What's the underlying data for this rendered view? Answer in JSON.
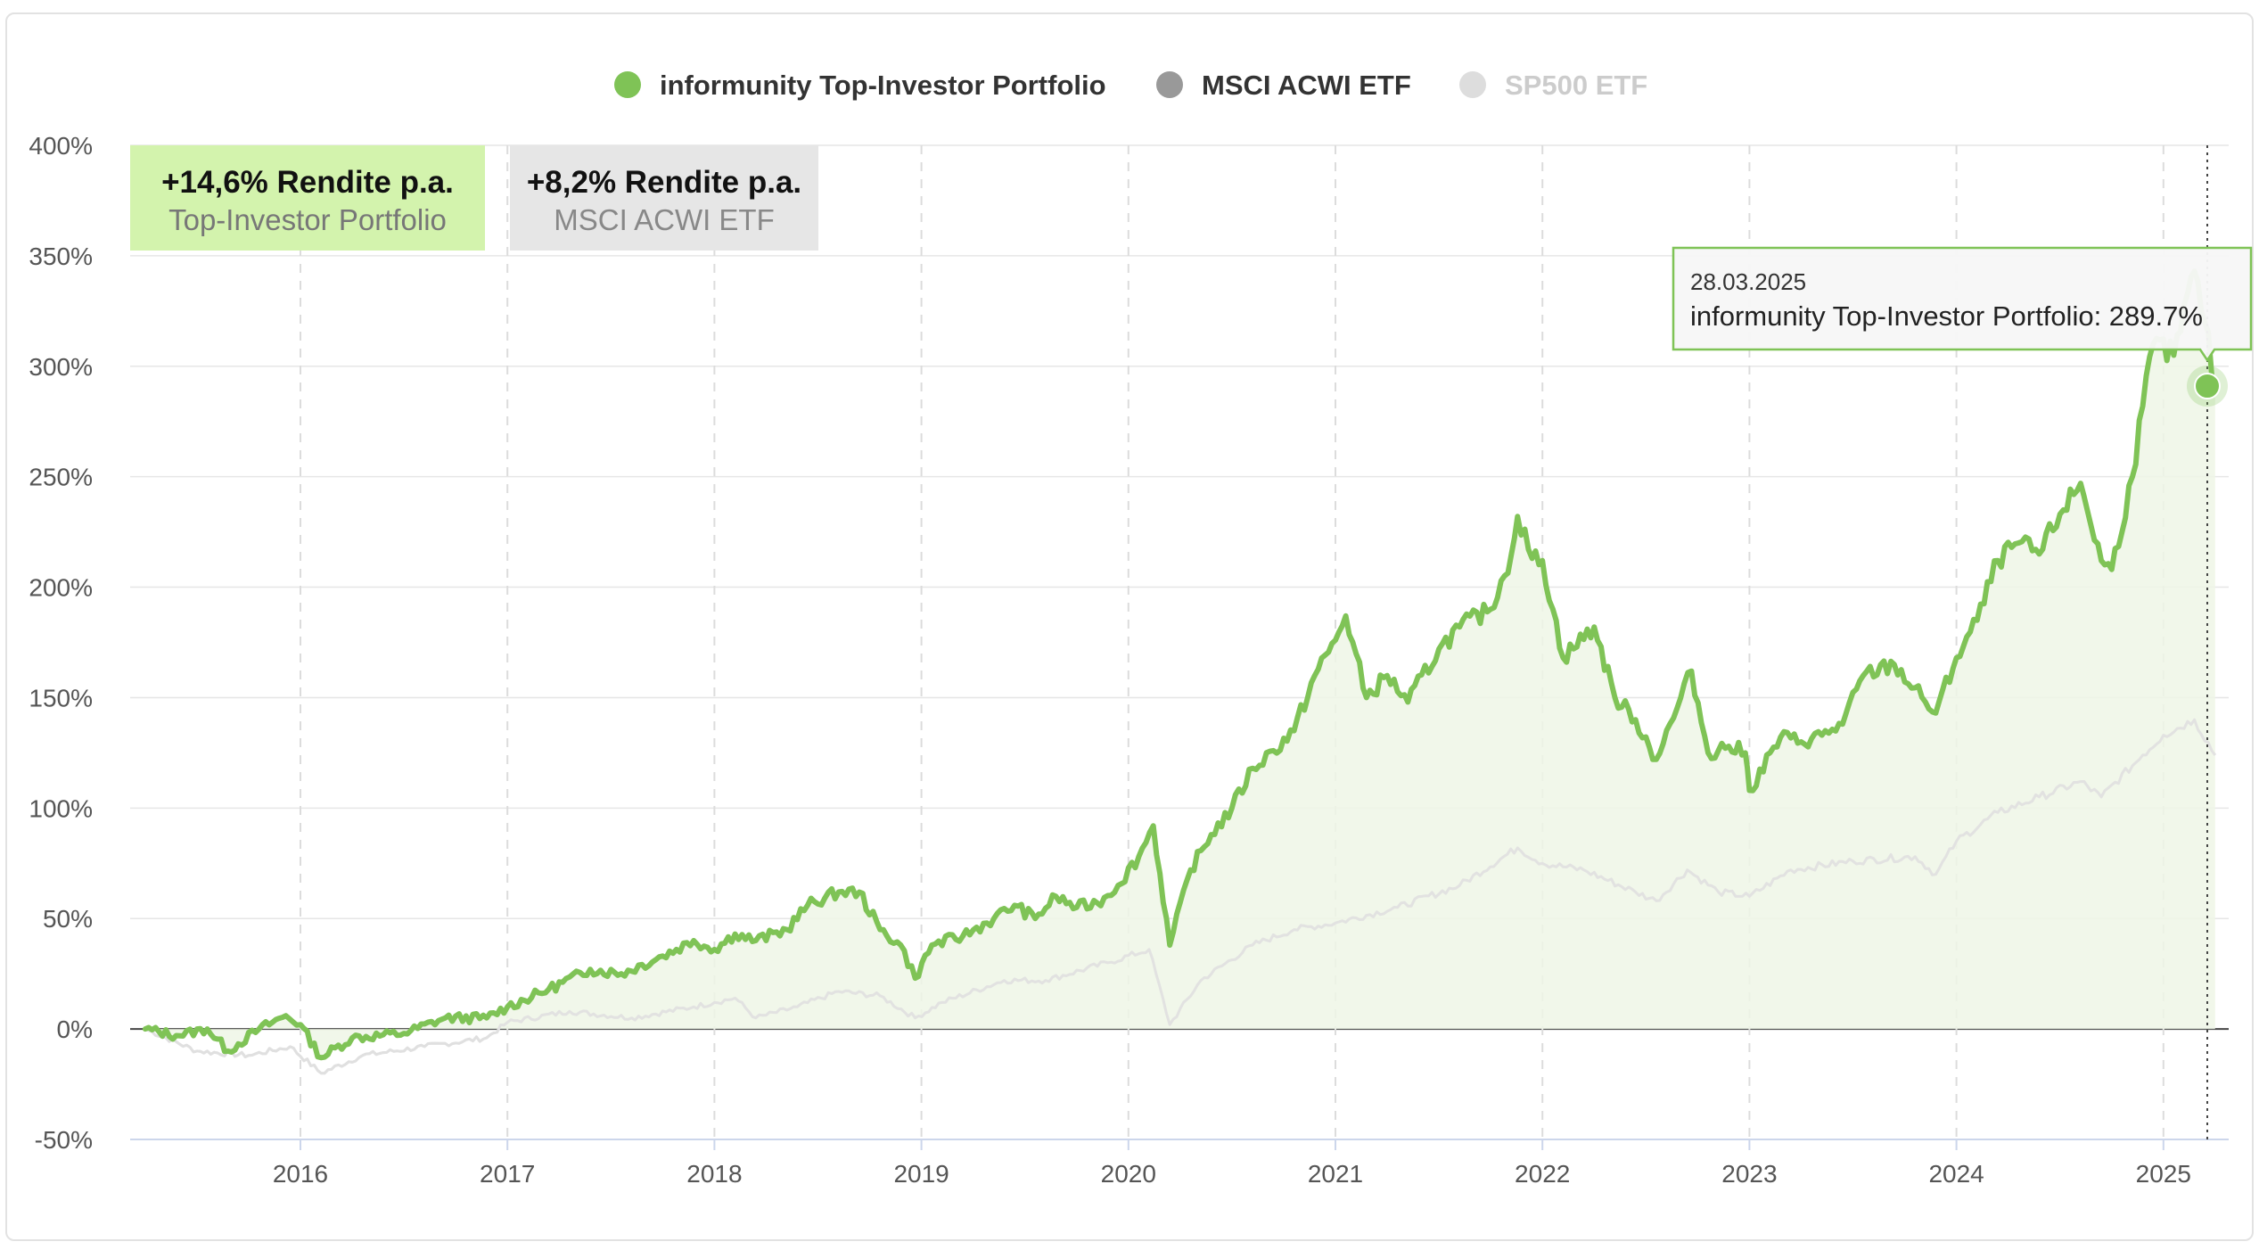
{
  "chart_data": {
    "type": "area",
    "y_tick_labels": [
      "400%",
      "350%",
      "300%",
      "250%",
      "200%",
      "150%",
      "100%",
      "50%",
      "0%",
      "-50%"
    ],
    "y_ticks": [
      400,
      350,
      300,
      250,
      200,
      150,
      100,
      50,
      0,
      -50
    ],
    "ylim": [
      -50,
      400
    ],
    "x_tick_labels": [
      "2016",
      "2017",
      "2018",
      "2019",
      "2020",
      "2021",
      "2022",
      "2023",
      "2024",
      "2025"
    ],
    "x_ticks": [
      2016,
      2017,
      2018,
      2019,
      2020,
      2021,
      2022,
      2023,
      2024,
      2025
    ],
    "xlim": [
      2015.2,
      2025.4
    ],
    "grid": true,
    "legend_position": "top-center",
    "series": [
      {
        "name": "informunity Top-Investor Portfolio",
        "color": "#7fc356",
        "fill": "#eef6e6",
        "points": [
          [
            2015.25,
            0
          ],
          [
            2015.4,
            -3
          ],
          [
            2015.55,
            0
          ],
          [
            2015.65,
            -10
          ],
          [
            2015.8,
            0
          ],
          [
            2015.93,
            6
          ],
          [
            2016.0,
            2
          ],
          [
            2016.1,
            -13
          ],
          [
            2016.25,
            -4
          ],
          [
            2016.5,
            -2
          ],
          [
            2016.7,
            5
          ],
          [
            2016.9,
            5
          ],
          [
            2017.0,
            10
          ],
          [
            2017.2,
            18
          ],
          [
            2017.4,
            27
          ],
          [
            2017.55,
            25
          ],
          [
            2017.75,
            33
          ],
          [
            2017.9,
            40
          ],
          [
            2018.0,
            36
          ],
          [
            2018.1,
            43
          ],
          [
            2018.2,
            40
          ],
          [
            2018.35,
            45
          ],
          [
            2018.45,
            56
          ],
          [
            2018.6,
            62
          ],
          [
            2018.7,
            62
          ],
          [
            2018.8,
            45
          ],
          [
            2018.9,
            38
          ],
          [
            2018.97,
            23
          ],
          [
            2019.05,
            38
          ],
          [
            2019.2,
            42
          ],
          [
            2019.35,
            50
          ],
          [
            2019.45,
            56
          ],
          [
            2019.55,
            50
          ],
          [
            2019.65,
            60
          ],
          [
            2019.75,
            55
          ],
          [
            2019.85,
            57
          ],
          [
            2019.95,
            65
          ],
          [
            2020.05,
            78
          ],
          [
            2020.12,
            92
          ],
          [
            2020.2,
            38
          ],
          [
            2020.3,
            72
          ],
          [
            2020.4,
            88
          ],
          [
            2020.5,
            100
          ],
          [
            2020.6,
            118
          ],
          [
            2020.7,
            126
          ],
          [
            2020.8,
            135
          ],
          [
            2020.9,
            160
          ],
          [
            2021.0,
            176
          ],
          [
            2021.05,
            187
          ],
          [
            2021.15,
            150
          ],
          [
            2021.25,
            160
          ],
          [
            2021.35,
            148
          ],
          [
            2021.5,
            172
          ],
          [
            2021.6,
            182
          ],
          [
            2021.75,
            190
          ],
          [
            2021.85,
            215
          ],
          [
            2021.88,
            232
          ],
          [
            2021.95,
            213
          ],
          [
            2022.0,
            212
          ],
          [
            2022.1,
            168
          ],
          [
            2022.25,
            182
          ],
          [
            2022.35,
            150
          ],
          [
            2022.45,
            140
          ],
          [
            2022.55,
            122
          ],
          [
            2022.65,
            145
          ],
          [
            2022.72,
            162
          ],
          [
            2022.8,
            125
          ],
          [
            2022.9,
            128
          ],
          [
            2022.98,
            125
          ],
          [
            2023.0,
            108
          ],
          [
            2023.15,
            132
          ],
          [
            2023.25,
            130
          ],
          [
            2023.35,
            133
          ],
          [
            2023.45,
            138
          ],
          [
            2023.55,
            160
          ],
          [
            2023.7,
            165
          ],
          [
            2023.85,
            148
          ],
          [
            2023.9,
            143
          ],
          [
            2024.0,
            168
          ],
          [
            2024.1,
            185
          ],
          [
            2024.2,
            212
          ],
          [
            2024.3,
            220
          ],
          [
            2024.4,
            215
          ],
          [
            2024.5,
            233
          ],
          [
            2024.6,
            247
          ],
          [
            2024.7,
            212
          ],
          [
            2024.75,
            208
          ],
          [
            2024.85,
            250
          ],
          [
            2024.9,
            282
          ],
          [
            2024.95,
            310
          ],
          [
            2025.05,
            305
          ],
          [
            2025.15,
            343
          ],
          [
            2025.2,
            320
          ],
          [
            2025.25,
            289.7
          ]
        ]
      },
      {
        "name": "MSCI ACWI ETF",
        "color": "#e0e0e0",
        "points": [
          [
            2015.25,
            0
          ],
          [
            2015.5,
            -10
          ],
          [
            2015.75,
            -12
          ],
          [
            2015.95,
            -8
          ],
          [
            2016.1,
            -20
          ],
          [
            2016.3,
            -12
          ],
          [
            2016.6,
            -8
          ],
          [
            2016.9,
            -4
          ],
          [
            2017.0,
            3
          ],
          [
            2017.3,
            8
          ],
          [
            2017.6,
            5
          ],
          [
            2017.9,
            10
          ],
          [
            2018.0,
            12
          ],
          [
            2018.1,
            14
          ],
          [
            2018.2,
            5
          ],
          [
            2018.4,
            10
          ],
          [
            2018.6,
            17
          ],
          [
            2018.8,
            15
          ],
          [
            2018.97,
            5
          ],
          [
            2019.1,
            12
          ],
          [
            2019.4,
            22
          ],
          [
            2019.6,
            22
          ],
          [
            2019.9,
            30
          ],
          [
            2020.1,
            36
          ],
          [
            2020.2,
            2
          ],
          [
            2020.35,
            22
          ],
          [
            2020.6,
            38
          ],
          [
            2020.8,
            45
          ],
          [
            2021.0,
            48
          ],
          [
            2021.3,
            55
          ],
          [
            2021.6,
            65
          ],
          [
            2021.88,
            82
          ],
          [
            2022.0,
            75
          ],
          [
            2022.2,
            72
          ],
          [
            2022.45,
            62
          ],
          [
            2022.55,
            58
          ],
          [
            2022.7,
            72
          ],
          [
            2022.85,
            62
          ],
          [
            2023.0,
            60
          ],
          [
            2023.2,
            72
          ],
          [
            2023.5,
            76
          ],
          [
            2023.8,
            78
          ],
          [
            2023.9,
            70
          ],
          [
            2024.0,
            85
          ],
          [
            2024.2,
            98
          ],
          [
            2024.4,
            105
          ],
          [
            2024.6,
            112
          ],
          [
            2024.7,
            105
          ],
          [
            2024.9,
            124
          ],
          [
            2025.0,
            133
          ],
          [
            2025.15,
            140
          ],
          [
            2025.25,
            124
          ]
        ]
      }
    ],
    "hidden_series": [
      {
        "name": "SP500 ETF"
      }
    ],
    "tooltip": {
      "date": "28.03.2025",
      "series": "informunity Top-Investor Portfolio",
      "value": 289.7,
      "text": "informunity Top-Investor Portfolio: 289.7%"
    }
  },
  "legend": {
    "items": [
      {
        "label": "informunity Top-Investor Portfolio",
        "color": "#7fc356",
        "text_color": "#333333"
      },
      {
        "label": "MSCI ACWI ETF",
        "color": "#999999",
        "text_color": "#333333"
      },
      {
        "label": "SP500 ETF",
        "color": "#dddddd",
        "text_color": "#cccccc"
      }
    ]
  },
  "info_boxes": [
    {
      "title": "+14,6% Rendite p.a.",
      "subtitle": "Top-Investor Portfolio",
      "bg": "#d3f3ad",
      "sub_color": "#777777"
    },
    {
      "title": "+8,2% Rendite p.a.",
      "subtitle": "MSCI ACWI ETF",
      "bg": "#e6e6e6",
      "sub_color": "#888888"
    }
  ]
}
